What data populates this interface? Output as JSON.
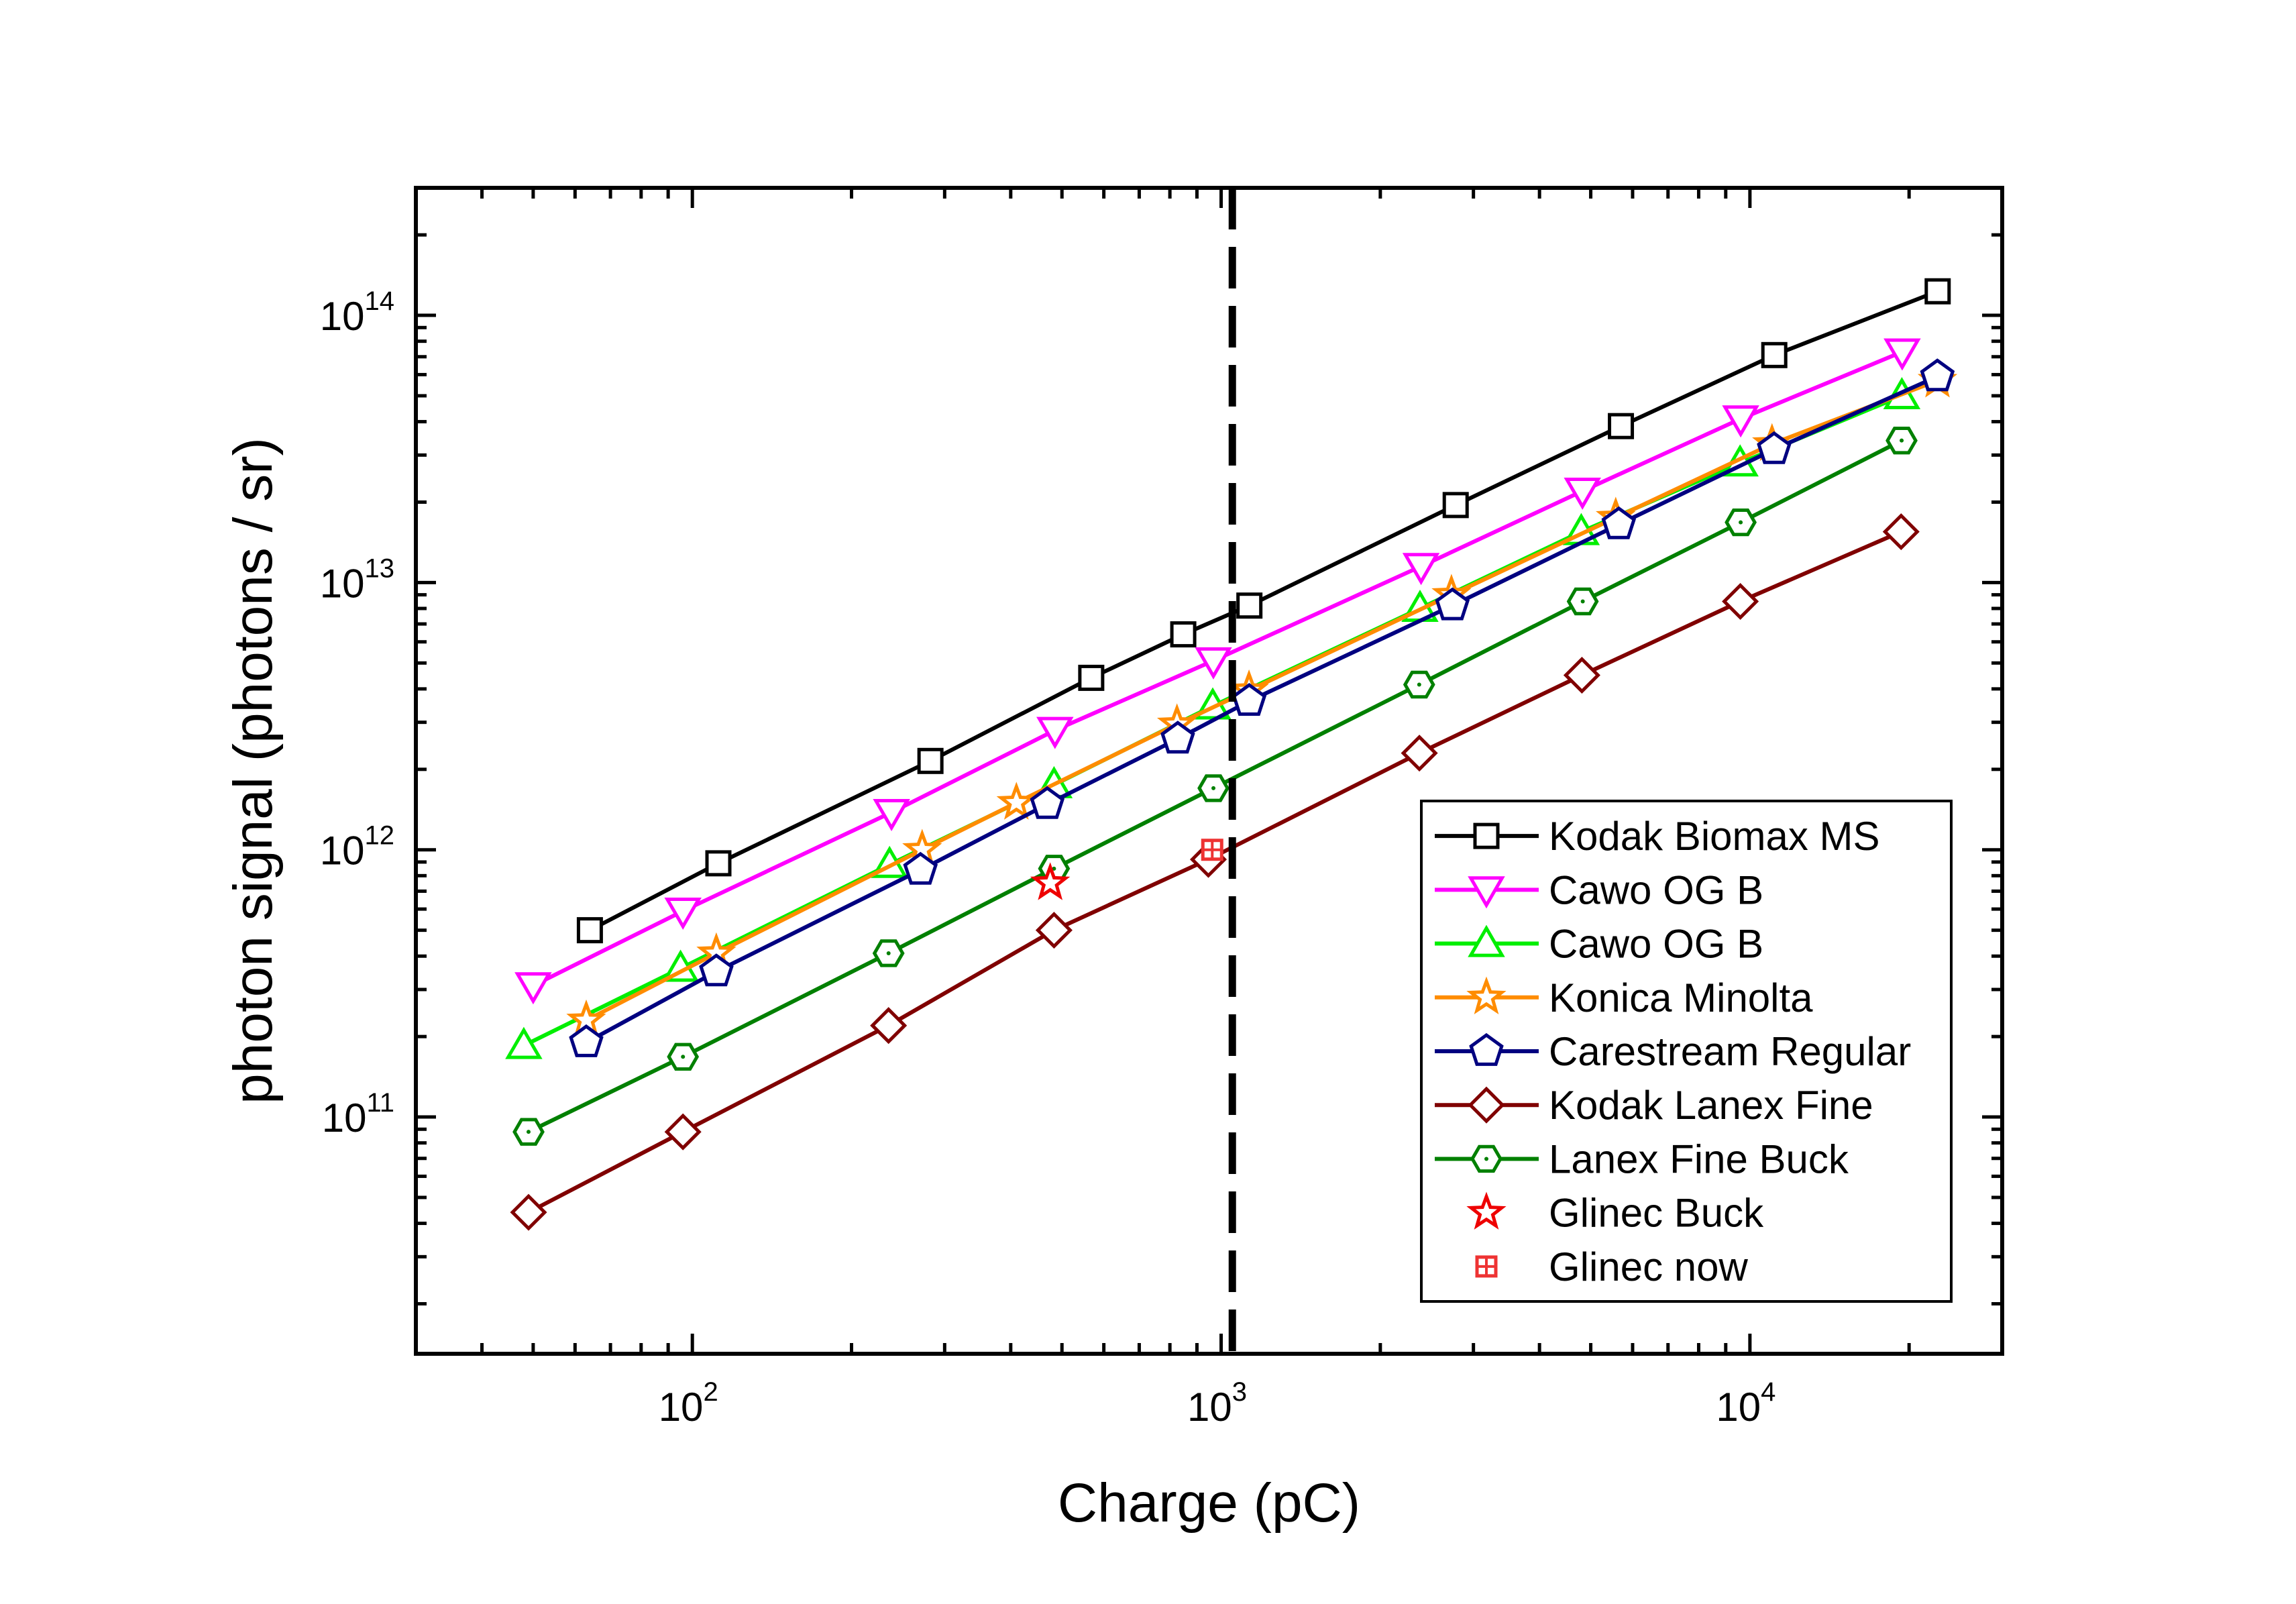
{
  "chart_data": {
    "type": "line",
    "xlabel": "Charge (pC)",
    "ylabel": "photon signal (photons / sr)",
    "xscale": "log",
    "yscale": "log",
    "xlim": [
      30,
      30000
    ],
    "ylim": [
      13000000000.0,
      300000000000000.0
    ],
    "xticks": [
      {
        "base": "10",
        "exp": "2",
        "value": 100
      },
      {
        "base": "10",
        "exp": "3",
        "value": 1000
      },
      {
        "base": "10",
        "exp": "4",
        "value": 10000
      }
    ],
    "yticks": [
      {
        "base": "10",
        "exp": "11",
        "value": 100000000000.0
      },
      {
        "base": "10",
        "exp": "12",
        "value": 1000000000000.0
      },
      {
        "base": "10",
        "exp": "13",
        "value": 10000000000000.0
      },
      {
        "base": "10",
        "exp": "14",
        "value": 100000000000000.0
      }
    ],
    "reference_line": {
      "x": 1050,
      "style": "dashed",
      "color": "#000000"
    },
    "legend_position": "bottom-right",
    "grid": false,
    "series": [
      {
        "name": "Kodak Biomax MS",
        "color": "#000000",
        "marker": "square",
        "line": true,
        "x": [
          64,
          112,
          282,
          568,
          848,
          1131,
          2777,
          5702,
          11120,
          22650
        ],
        "y": [
          500000000000.0,
          890000000000.0,
          2150000000000.0,
          4400000000000.0,
          6400000000000.0,
          8200000000000.0,
          19500000000000.0,
          38500000000000.0,
          71000000000000.0,
          123000000000000.0
        ]
      },
      {
        "name": "Cawo OG B",
        "color": "#ff00ff",
        "marker": "triangle-down",
        "line": true,
        "x": [
          50,
          96,
          238,
          485,
          967,
          2388,
          4823,
          9605,
          19410
        ],
        "y": [
          310000000000.0,
          590000000000.0,
          1380000000000.0,
          2800000000000.0,
          5100000000000.0,
          11500000000000.0,
          22000000000000.0,
          41000000000000.0,
          73000000000000.0
        ]
      },
      {
        "name": "Cawo OG B",
        "color": "#00ee00",
        "marker": "triangle-up",
        "line": true,
        "x": [
          48,
          95,
          236,
          483,
          964,
          2377,
          4798,
          9580,
          19380
        ],
        "y": [
          185000000000.0,
          360000000000.0,
          880000000000.0,
          1750000000000.0,
          3450000000000.0,
          8000000000000.0,
          15500000000000.0,
          28000000000000.0,
          50000000000000.0
        ]
      },
      {
        "name": "Konica Minolta",
        "color": "#ff8c00",
        "marker": "star",
        "line": true,
        "x": [
          63,
          111,
          272,
          410,
          825,
          1129,
          2726,
          5574,
          11010,
          22630
        ],
        "y": [
          230000000000.0,
          410000000000.0,
          1000000000000.0,
          1500000000000.0,
          2950000000000.0,
          3950000000000.0,
          9000000000000.0,
          17500000000000.0,
          33000000000000.0,
          57000000000000.0
        ]
      },
      {
        "name": "Carestream Regular",
        "color": "#000080",
        "marker": "pentagon",
        "line": true,
        "x": [
          63,
          111,
          270,
          469,
          828,
          1130,
          2737,
          5648,
          11110,
          22620
        ],
        "y": [
          190000000000.0,
          350000000000.0,
          840000000000.0,
          1480000000000.0,
          2600000000000.0,
          3600000000000.0,
          8200000000000.0,
          16500000000000.0,
          31500000000000.0,
          59000000000000.0
        ]
      },
      {
        "name": "Kodak Lanex Fine",
        "color": "#800000",
        "marker": "diamond",
        "line": true,
        "x": [
          49,
          96,
          235,
          483,
          946,
          2371,
          4812,
          9591,
          19320
        ],
        "y": [
          44000000000.0,
          88000000000.0,
          220000000000.0,
          500000000000.0,
          920000000000.0,
          2300000000000.0,
          4500000000000.0,
          8500000000000.0,
          15500000000000.0
        ]
      },
      {
        "name": "Lanex Fine Buck",
        "color": "#008000",
        "marker": "hexagon-dot",
        "line": true,
        "x": [
          49,
          96,
          235,
          483,
          967,
          2369,
          4829,
          9605,
          19360
        ],
        "y": [
          88000000000.0,
          168000000000.0,
          410000000000.0,
          850000000000.0,
          1700000000000.0,
          4150000000000.0,
          8500000000000.0,
          16800000000000.0,
          34000000000000.0
        ]
      },
      {
        "name": "Glinec Buck",
        "color": "#ee0000",
        "marker": "star",
        "line": false,
        "x": [
          475
        ],
        "y": [
          750000000000.0
        ]
      },
      {
        "name": "Glinec now",
        "color": "#ee3333",
        "marker": "square-plus",
        "line": false,
        "x": [
          962
        ],
        "y": [
          1000000000000.0
        ]
      }
    ]
  }
}
